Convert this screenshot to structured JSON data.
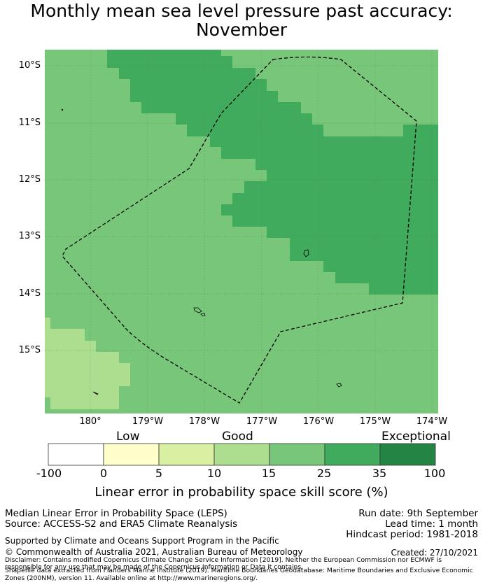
{
  "title": {
    "line1": "Monthly mean sea level pressure past accuracy:",
    "line2": "November"
  },
  "map": {
    "lat_labels": [
      "10°S",
      "11°S",
      "12°S",
      "13°S",
      "14°S",
      "15°S"
    ],
    "lon_labels": [
      "180°",
      "179°W",
      "178°W",
      "177°W",
      "176°W",
      "175°W",
      "174°W"
    ],
    "colors": {
      "yellow_green": "#d9f0a3",
      "light_green": "#addd8e",
      "mid_green": "#78c679",
      "dark_green": "#41ab5d",
      "darkest_green": "#238443"
    }
  },
  "colorbar": {
    "categories": [
      "Low",
      "Good",
      "Exceptional"
    ],
    "ticks": [
      "-100",
      "0",
      "5",
      "10",
      "15",
      "25",
      "35",
      "100"
    ],
    "colors": [
      "#ffffff",
      "#ffffcc",
      "#d9f0a3",
      "#addd8e",
      "#78c679",
      "#41ab5d",
      "#238443"
    ],
    "title": "Linear error in probability space skill score (%)"
  },
  "footer": {
    "left_line1": "Median Linear Error in Probability Space (LEPS)",
    "left_line2": "Source: ACCESS-S2 and ERA5 Climate Reanalysis",
    "run_date": "Run date: 9th September",
    "lead_time": "Lead time: 1 month",
    "hindcast": "Hindcast period: 1981-2018",
    "supported": "Supported by Climate and Oceans Support Program in the Pacific",
    "copyright": "© Commonwealth of Australia 2021, Australian Bureau of Meteorology",
    "created": "Created: 27/10/2021",
    "disclaimer1": "Disclaimer: Contains modified Copernicus Climate Change Service Information [2019]. Neither the European Commission nor ECMWF is",
    "disclaimer2": "responsible for any use that may be made of the Copernicus Information or Data it contains.",
    "disclaimer3": "Shapefile data extracted from Flanders Marine Institute (2019). Maritime Boundaries Geodatabase: Maritime Boundaries and Exclusive Economic",
    "disclaimer4": "Zones (200NM), version 11. Available online at http://www.marineregions.org/."
  }
}
